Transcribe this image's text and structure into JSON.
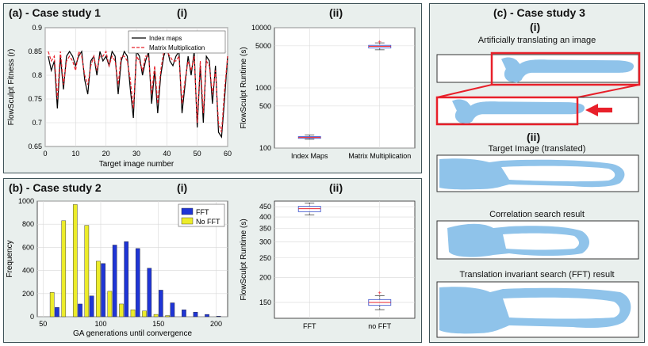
{
  "panel_a": {
    "title": "(a) - Case study 1",
    "tag_i": "(i)",
    "tag_ii": "(ii)"
  },
  "panel_b": {
    "title": "(b) - Case study 2",
    "tag_i": "(i)",
    "tag_ii": "(ii)"
  },
  "panel_c": {
    "title": "(c) - Case study 3",
    "tag_i": "(i)",
    "tag_ii": "(ii)",
    "label_translating": "Artificially translating an image",
    "label_target": "Target Image (translated)",
    "label_correlation": "Correlation search result",
    "label_fft": "Translation invariant search (FFT) result",
    "highlight_color": "#e8202a",
    "shape_color": "#8fc3ea"
  },
  "chart_data": [
    {
      "id": "a_i",
      "type": "line",
      "xlabel": "Target image number",
      "ylabel": "FlowSculpt Fitness (r)",
      "xlim": [
        0,
        60
      ],
      "ylim": [
        0.65,
        0.9
      ],
      "xticks": [
        0,
        10,
        20,
        30,
        40,
        50,
        60
      ],
      "yticks": [
        0.65,
        0.7,
        0.75,
        0.8,
        0.85,
        0.9
      ],
      "ytick_labels": [
        "0.65",
        "0.7",
        "0.75",
        "0.8",
        "0.85",
        "0.9"
      ],
      "legend_position": "top-right",
      "x": [
        1,
        2,
        3,
        4,
        5,
        6,
        7,
        8,
        9,
        10,
        11,
        12,
        13,
        14,
        15,
        16,
        17,
        18,
        19,
        20,
        21,
        22,
        23,
        24,
        25,
        26,
        27,
        28,
        29,
        30,
        31,
        32,
        33,
        34,
        35,
        36,
        37,
        38,
        39,
        40,
        41,
        42,
        43,
        44,
        45,
        46,
        47,
        48,
        49,
        50,
        51,
        52,
        53,
        54,
        55,
        56,
        57,
        58,
        59,
        60
      ],
      "series": [
        {
          "name": "Index maps",
          "color": "#000000",
          "values": [
            0.84,
            0.81,
            0.83,
            0.73,
            0.84,
            0.77,
            0.84,
            0.85,
            0.84,
            0.82,
            0.84,
            0.85,
            0.79,
            0.76,
            0.83,
            0.84,
            0.8,
            0.85,
            0.83,
            0.84,
            0.82,
            0.85,
            0.84,
            0.76,
            0.83,
            0.85,
            0.84,
            0.77,
            0.71,
            0.85,
            0.84,
            0.8,
            0.83,
            0.85,
            0.74,
            0.81,
            0.72,
            0.8,
            0.84,
            0.86,
            0.83,
            0.82,
            0.84,
            0.85,
            0.72,
            0.78,
            0.84,
            0.8,
            0.85,
            0.69,
            0.82,
            0.7,
            0.84,
            0.83,
            0.74,
            0.82,
            0.68,
            0.67,
            0.75,
            0.84
          ]
        },
        {
          "name": "Matrix Multiplication",
          "color": "#e8202a",
          "values": [
            0.85,
            0.83,
            0.84,
            0.75,
            0.85,
            0.78,
            0.83,
            0.84,
            0.83,
            0.81,
            0.85,
            0.84,
            0.8,
            0.78,
            0.82,
            0.84,
            0.81,
            0.84,
            0.84,
            0.85,
            0.82,
            0.84,
            0.83,
            0.78,
            0.84,
            0.84,
            0.83,
            0.79,
            0.73,
            0.84,
            0.83,
            0.81,
            0.84,
            0.84,
            0.76,
            0.82,
            0.74,
            0.81,
            0.85,
            0.85,
            0.84,
            0.83,
            0.83,
            0.84,
            0.74,
            0.79,
            0.83,
            0.81,
            0.84,
            0.7,
            0.83,
            0.72,
            0.83,
            0.82,
            0.76,
            0.81,
            0.7,
            0.68,
            0.77,
            0.84
          ]
        }
      ]
    },
    {
      "id": "a_ii",
      "type": "box",
      "ylabel": "FlowSculpt Runtime (s)",
      "yscale": "log",
      "ylim": [
        100,
        10000
      ],
      "yticks": [
        100,
        500,
        1000,
        5000,
        10000
      ],
      "ytick_labels": [
        "100",
        "500",
        "1000",
        "5000",
        "10000"
      ],
      "categories": [
        "Index Maps",
        "Matrix Multiplication"
      ],
      "boxes": [
        {
          "min": 140,
          "q1": 145,
          "median": 150,
          "q3": 155,
          "max": 165,
          "outliers": []
        },
        {
          "min": 4300,
          "q1": 4600,
          "median": 4900,
          "q3": 5100,
          "max": 5600,
          "outliers": [
            5900
          ]
        }
      ]
    },
    {
      "id": "b_i",
      "type": "bar",
      "xlabel": "GA generations until convergence",
      "ylabel": "Frequency",
      "xlim": [
        45,
        210
      ],
      "ylim": [
        0,
        1000
      ],
      "xticks": [
        50,
        100,
        150,
        200
      ],
      "yticks": [
        0,
        200,
        400,
        600,
        800,
        1000
      ],
      "legend_position": "top-right",
      "categories": [
        60,
        70,
        80,
        90,
        100,
        110,
        120,
        130,
        140,
        150,
        160,
        170,
        180,
        190,
        200
      ],
      "series": [
        {
          "name": "FFT",
          "color": "#1f35d6",
          "values": [
            80,
            0,
            110,
            180,
            460,
            620,
            650,
            590,
            420,
            230,
            120,
            60,
            40,
            20,
            5
          ]
        },
        {
          "name": "No FFT",
          "color": "#ecec2a",
          "values": [
            210,
            830,
            970,
            790,
            480,
            220,
            110,
            60,
            50,
            20,
            10,
            0,
            0,
            0,
            0
          ]
        }
      ]
    },
    {
      "id": "b_ii",
      "type": "box",
      "ylabel": "FlowSculpt Runtime (s)",
      "yscale": "log",
      "ylim": [
        125,
        480
      ],
      "yticks": [
        150,
        200,
        250,
        300,
        350,
        400,
        450
      ],
      "ytick_labels": [
        "150",
        "200",
        "250",
        "300",
        "350",
        "400",
        "450"
      ],
      "categories": [
        "FFT",
        "no FFT"
      ],
      "boxes": [
        {
          "min": 410,
          "q1": 425,
          "median": 440,
          "q3": 452,
          "max": 470,
          "outliers": []
        },
        {
          "min": 138,
          "q1": 145,
          "median": 150,
          "q3": 155,
          "max": 162,
          "outliers": [
            168
          ]
        }
      ]
    }
  ]
}
